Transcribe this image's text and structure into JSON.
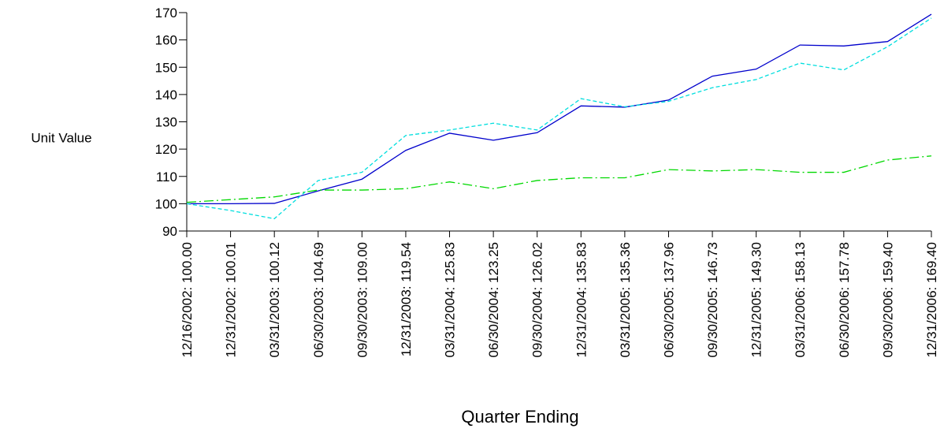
{
  "chart_data": {
    "type": "line",
    "x_label": "Quarter Ending",
    "y_label": "Unit Value",
    "categories": [
      "12/16/2002: 100.00",
      "12/31/2002: 100.01",
      "03/31/2003: 100.12",
      "06/30/2003: 104.69",
      "09/30/2003: 109.00",
      "12/31/2003: 119.54",
      "03/31/2004: 125.83",
      "06/30/2004: 123.25",
      "09/30/2004: 126.02",
      "12/31/2004: 135.83",
      "03/31/2005: 135.36",
      "06/30/2005: 137.96",
      "09/30/2005: 146.73",
      "12/31/2005: 149.30",
      "03/31/2006: 158.13",
      "06/30/2006: 157.78",
      "09/30/2006: 159.40",
      "12/31/2006: 169.40"
    ],
    "series": [
      {
        "color": "#0000cc",
        "dash": "solid",
        "values": [
          100.0,
          100.01,
          100.12,
          104.69,
          109.0,
          119.54,
          125.83,
          123.25,
          126.02,
          135.83,
          135.36,
          137.96,
          146.73,
          149.3,
          158.13,
          157.78,
          159.4,
          169.4
        ]
      },
      {
        "color": "#00dede",
        "dash": "dashed",
        "values": [
          100,
          97.5,
          94.5,
          108.5,
          111.5,
          125,
          127,
          129.5,
          127,
          138.5,
          135.5,
          137.5,
          142.5,
          145.5,
          151.5,
          149,
          157.5,
          168
        ]
      },
      {
        "color": "#00d800",
        "dash": "dashdot",
        "values": [
          100.5,
          101.5,
          102.5,
          105,
          105,
          105.5,
          108,
          105.5,
          108.5,
          109.5,
          109.5,
          112.5,
          112,
          112.5,
          111.5,
          111.5,
          116,
          117.5
        ]
      }
    ],
    "ylim": [
      90,
      170
    ],
    "yticks": [
      90,
      100,
      110,
      120,
      130,
      140,
      150,
      160,
      170
    ]
  }
}
